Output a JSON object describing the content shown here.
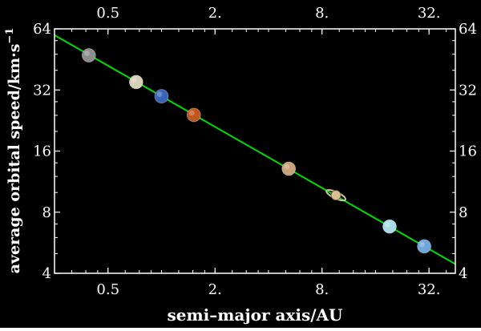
{
  "chart_data": {
    "type": "scatter",
    "title": "",
    "xlabel": "semi–major axis/AU",
    "ylabel_main": "average orbital speed/km·s",
    "ylabel_sup": "−1",
    "x_scale": "log2",
    "y_scale": "log2",
    "xlim": [
      0.25,
      45
    ],
    "ylim": [
      4,
      64
    ],
    "xticks": [
      {
        "value": 0.5,
        "label": "0.5"
      },
      {
        "value": 2,
        "label": "2."
      },
      {
        "value": 8,
        "label": "8."
      },
      {
        "value": 32,
        "label": "32."
      }
    ],
    "yticks": [
      {
        "value": 4,
        "label": "4"
      },
      {
        "value": 8,
        "label": "8"
      },
      {
        "value": 16,
        "label": "16"
      },
      {
        "value": 32,
        "label": "32"
      },
      {
        "value": 64,
        "label": "64"
      }
    ],
    "fit_line": {
      "color": "#00dd00",
      "x": [
        0.25,
        45
      ],
      "y": [
        59.6,
        4.44
      ]
    },
    "points": [
      {
        "x": 0.39,
        "y": 47.4,
        "color": "#8c8c8c"
      },
      {
        "x": 0.72,
        "y": 35.0,
        "color": "#d8cfb8"
      },
      {
        "x": 1.0,
        "y": 29.8,
        "color": "#3a64b8"
      },
      {
        "x": 1.52,
        "y": 24.1,
        "color": "#c0581e"
      },
      {
        "x": 5.2,
        "y": 13.1,
        "color": "#c9a27a"
      },
      {
        "x": 9.58,
        "y": 9.7,
        "color": "#d9c28f"
      },
      {
        "x": 19.2,
        "y": 6.8,
        "color": "#a9dbe6"
      },
      {
        "x": 30.05,
        "y": 5.43,
        "color": "#6fa7dc"
      }
    ],
    "grid": false,
    "frame_color": "#ffffff",
    "background": "#000000"
  }
}
